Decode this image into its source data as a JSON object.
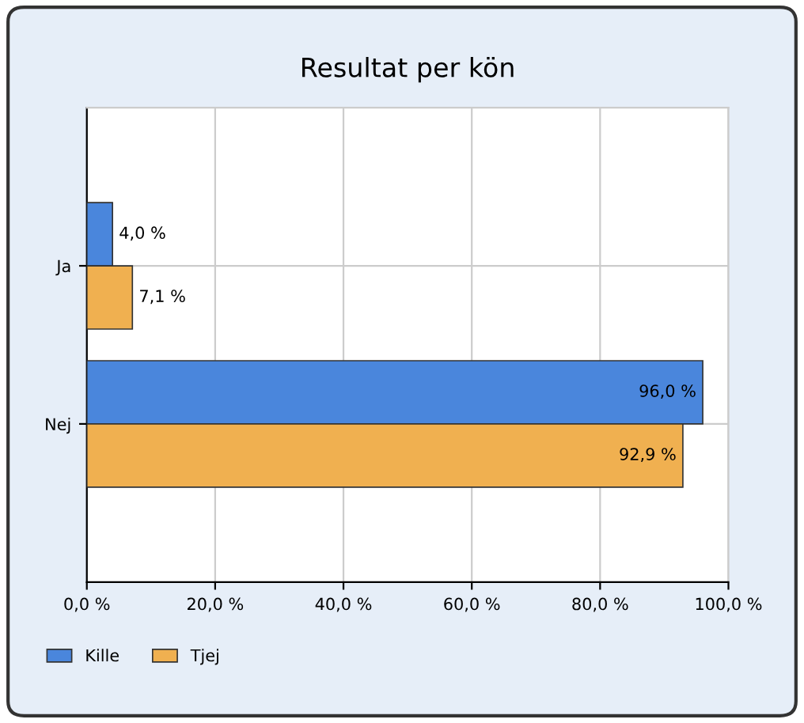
{
  "chart_data": {
    "type": "bar",
    "orientation": "horizontal",
    "title": "Resultat per kön",
    "categories": [
      "Ja",
      "Nej"
    ],
    "series": [
      {
        "name": "Kille",
        "color": "#4a86dc",
        "values": [
          4.0,
          96.0
        ],
        "value_labels": [
          "4,0 %",
          "96,0 %"
        ]
      },
      {
        "name": "Tjej",
        "color": "#f0b050",
        "values": [
          7.1,
          92.9
        ],
        "value_labels": [
          "7,1 %",
          "92,9 %"
        ]
      }
    ],
    "xlim": [
      0,
      100
    ],
    "xticks": [
      {
        "value": 0,
        "label": "0,0 %"
      },
      {
        "value": 20,
        "label": "20,0 %"
      },
      {
        "value": 40,
        "label": "40,0 %"
      },
      {
        "value": 60,
        "label": "60,0 %"
      },
      {
        "value": 80,
        "label": "80,0 %"
      },
      {
        "value": 100,
        "label": "100,0 %"
      }
    ],
    "grid": true,
    "legend": "bottom left"
  }
}
